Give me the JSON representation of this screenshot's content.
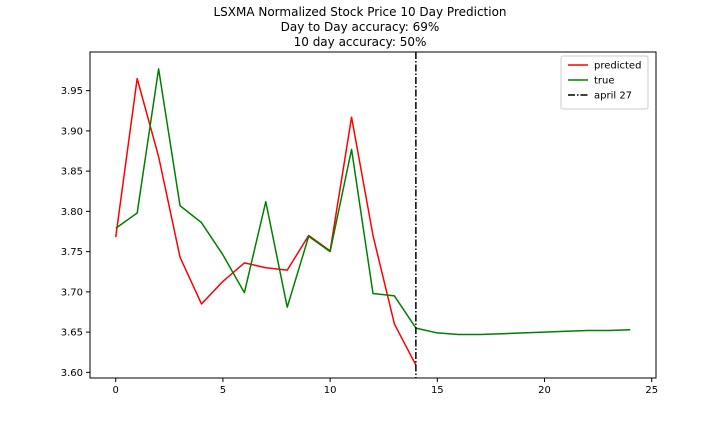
{
  "title_lines": [
    "LSXMA Normalized Stock Price 10 Day Prediction",
    "Day to Day accuracy: 69%",
    "10 day accuracy: 50%"
  ],
  "chart_data": {
    "type": "line",
    "title": "LSXMA Normalized Stock Price 10 Day Prediction",
    "subtitle": [
      "Day to Day accuracy: 69%",
      "10 day accuracy: 50%"
    ],
    "xlabel": "",
    "ylabel": "",
    "xlim": [
      -1.2,
      25.2
    ],
    "ylim": [
      3.593,
      3.998
    ],
    "xticks": [
      0,
      5,
      10,
      15,
      20,
      25
    ],
    "yticks": [
      3.6,
      3.65,
      3.7,
      3.75,
      3.8,
      3.85,
      3.9,
      3.95
    ],
    "ytick_labels": [
      "3.60",
      "3.65",
      "3.70",
      "3.75",
      "3.80",
      "3.85",
      "3.90",
      "3.95"
    ],
    "grid": false,
    "legend_position": "top-right",
    "series": [
      {
        "name": "predicted",
        "color": "#ff0000",
        "x": [
          0,
          1,
          2,
          3,
          4,
          5,
          6,
          7,
          8,
          9,
          10,
          11,
          12,
          13,
          14
        ],
        "values": [
          3.768,
          3.965,
          3.868,
          3.743,
          3.685,
          3.713,
          3.736,
          3.73,
          3.727,
          3.77,
          3.751,
          3.917,
          3.77,
          3.66,
          3.609
        ]
      },
      {
        "name": "true",
        "color": "#008000",
        "x": [
          0,
          1,
          2,
          3,
          4,
          5,
          6,
          7,
          8,
          9,
          10,
          11,
          12,
          13,
          14,
          15,
          16,
          17,
          18,
          19,
          20,
          21,
          22,
          23,
          24
        ],
        "values": [
          3.779,
          3.798,
          3.977,
          3.807,
          3.786,
          3.746,
          3.699,
          3.812,
          3.681,
          3.769,
          3.75,
          3.877,
          3.698,
          3.695,
          3.655,
          3.649,
          3.647,
          3.647,
          3.648,
          3.649,
          3.65,
          3.651,
          3.652,
          3.652,
          3.653
        ]
      }
    ],
    "vlines": [
      {
        "name": "april 27",
        "x": 14,
        "color": "#000000",
        "style": "dashdot"
      }
    ]
  }
}
